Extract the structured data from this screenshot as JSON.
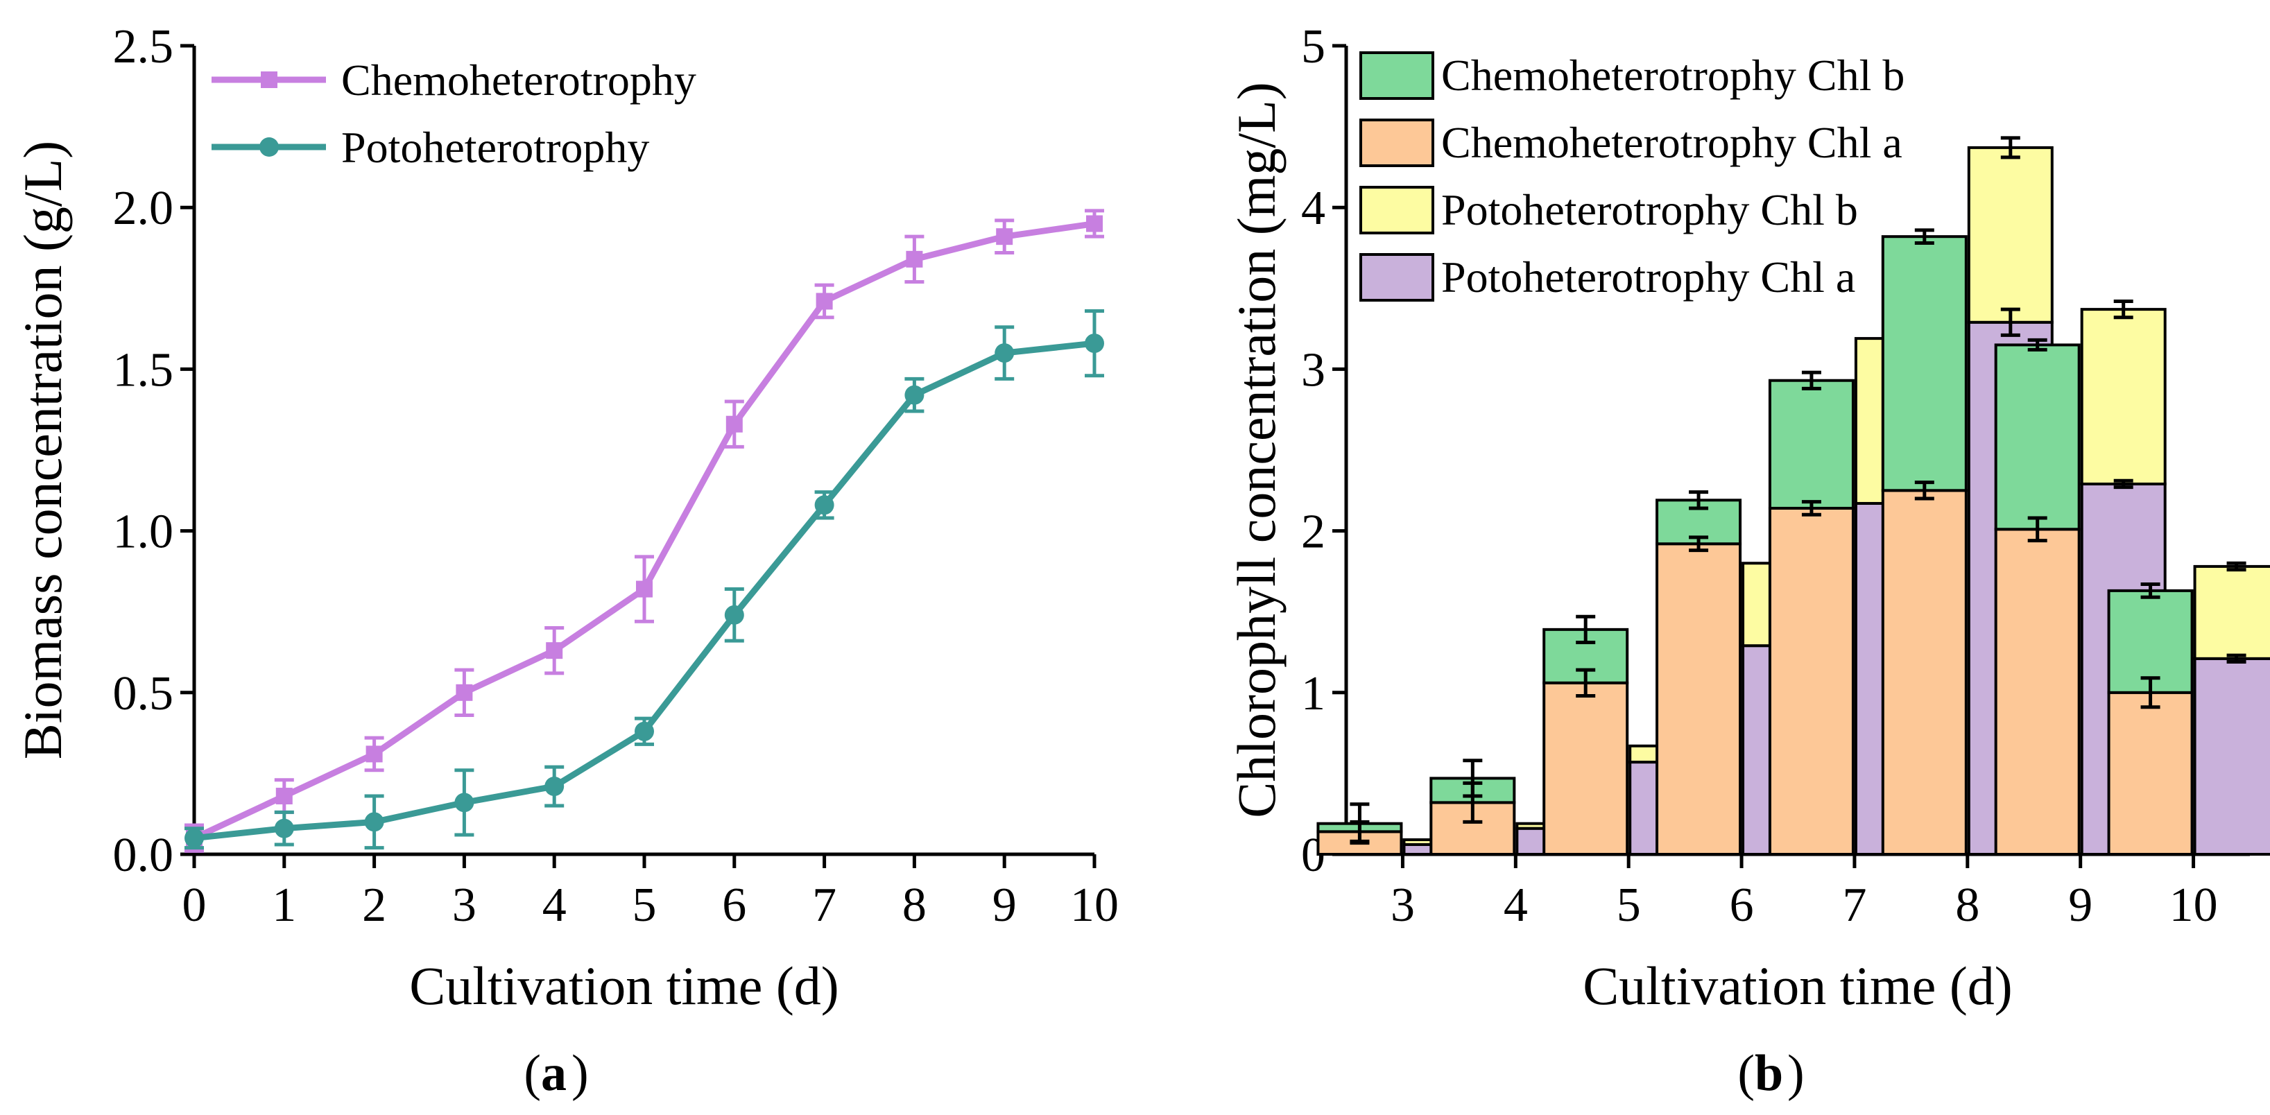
{
  "chart_data": [
    {
      "panel": "a",
      "type": "line",
      "caption": "a",
      "xlabel": "Cultivation time (d)",
      "ylabel": "Biomass concentration (g/L)",
      "xlim": [
        0,
        10
      ],
      "ylim": [
        0,
        2.5
      ],
      "xticks": [
        0,
        1,
        2,
        3,
        4,
        5,
        6,
        7,
        8,
        9,
        10
      ],
      "yticks": [
        "0.0",
        "0.5",
        "1.0",
        "1.5",
        "2.0",
        "2.5"
      ],
      "legend_position": "top-left",
      "x": [
        0,
        1,
        2,
        3,
        4,
        5,
        6,
        7,
        8,
        9,
        10
      ],
      "series": [
        {
          "name": "Chemoheterotrophy",
          "color": "#c77fe0",
          "marker": "square",
          "values": [
            0.05,
            0.18,
            0.31,
            0.5,
            0.63,
            0.82,
            1.33,
            1.71,
            1.84,
            1.91,
            1.95
          ],
          "errors": [
            0.04,
            0.05,
            0.05,
            0.07,
            0.07,
            0.1,
            0.07,
            0.05,
            0.07,
            0.05,
            0.04
          ]
        },
        {
          "name": "Potoheterotrophy",
          "color": "#3a9a96",
          "marker": "circle",
          "values": [
            0.05,
            0.08,
            0.1,
            0.16,
            0.21,
            0.38,
            0.74,
            1.08,
            1.42,
            1.55,
            1.58
          ],
          "errors": [
            0.03,
            0.05,
            0.08,
            0.1,
            0.06,
            0.04,
            0.08,
            0.04,
            0.05,
            0.08,
            0.1
          ]
        }
      ]
    },
    {
      "panel": "b",
      "type": "bar",
      "stacked": true,
      "caption": "b",
      "xlabel": "Cultivation time (d)",
      "ylabel": "Chlorophyll concentration (mg/L)",
      "categories": [
        "3",
        "4",
        "5",
        "6",
        "7",
        "8",
        "9",
        "10"
      ],
      "ylim": [
        0,
        5
      ],
      "yticks": [
        "0",
        "1",
        "2",
        "3",
        "4",
        "5"
      ],
      "legend_position": "top-left",
      "legend": [
        {
          "name": "Chemoheterotrophy Chl b",
          "color": "#7ed99a"
        },
        {
          "name": "Chemoheterotrophy Chl a",
          "color": "#fdc897"
        },
        {
          "name": "Potoheterotrophy Chl b",
          "color": "#fdfca2"
        },
        {
          "name": "Potoheterotrophy Chl a",
          "color": "#c9b1db"
        }
      ],
      "groups": [
        {
          "name": "Chemoheterotrophy",
          "chl_a": [
            0.14,
            0.32,
            1.06,
            1.92,
            2.14,
            2.25,
            2.01,
            1.0
          ],
          "chl_a_err": [
            0.06,
            0.12,
            0.08,
            0.04,
            0.04,
            0.05,
            0.07,
            0.09
          ],
          "total": [
            0.19,
            0.47,
            1.39,
            2.19,
            2.93,
            3.82,
            3.15,
            1.63
          ],
          "total_err": [
            0.12,
            0.11,
            0.08,
            0.05,
            0.05,
            0.04,
            0.03,
            0.04
          ]
        },
        {
          "name": "Potoheterotrophy",
          "chl_a": [
            0.06,
            0.16,
            0.57,
            1.29,
            2.17,
            3.29,
            2.29,
            1.21
          ],
          "chl_a_err": [
            0.03,
            0.04,
            0.05,
            0.05,
            0.02,
            0.08,
            0.02,
            0.02
          ],
          "total": [
            0.09,
            0.19,
            0.67,
            1.8,
            3.19,
            4.37,
            3.37,
            1.78
          ],
          "total_err": [
            0.03,
            0.04,
            0.03,
            0.05,
            0.06,
            0.06,
            0.05,
            0.02
          ]
        }
      ]
    }
  ]
}
